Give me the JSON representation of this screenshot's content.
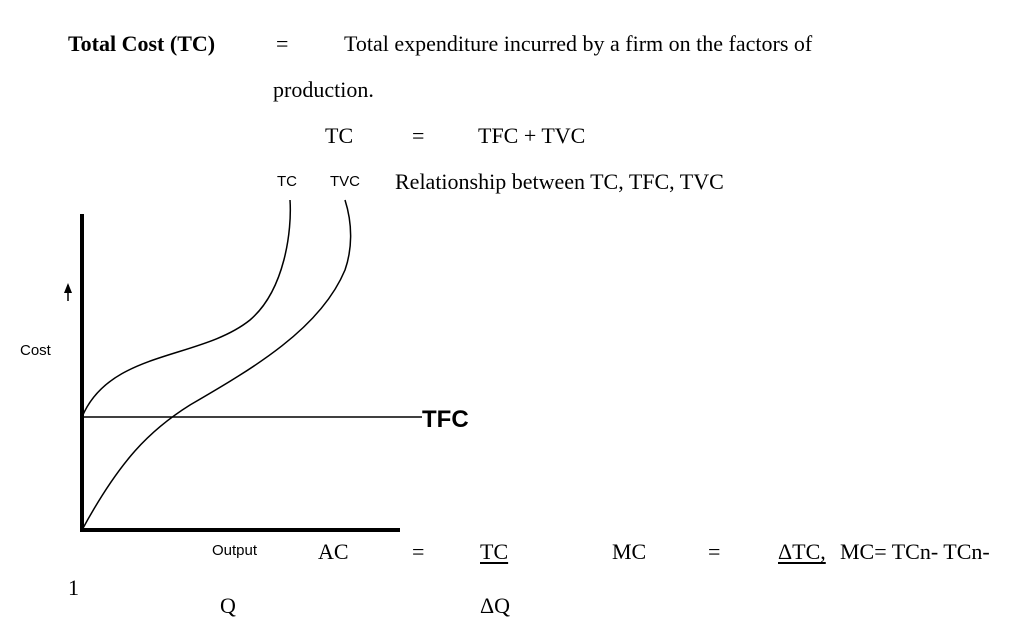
{
  "definition": {
    "term": "Total Cost (TC)",
    "equals": "=",
    "text_line1": "Total expenditure incurred by a firm on the factors of",
    "text_line2": "production."
  },
  "formula": {
    "lhs": "TC",
    "equals": "=",
    "rhs": "TFC + TVC"
  },
  "graph": {
    "curve_label_tc": "TC",
    "curve_label_tvc": "TVC",
    "caption": "Relationship between TC, TFC, TVC",
    "y_axis_label": "Cost",
    "x_axis_label": "Output",
    "tfc_label": "TFC"
  },
  "ac_formula": {
    "lhs": "AC",
    "equals": "=",
    "numerator": "TC",
    "denominator": "Q"
  },
  "mc_formula": {
    "lhs": "MC",
    "equals": "=",
    "numerator": "ΔTC,",
    "denominator": "ΔQ",
    "alt": "MC= TCn- TCn-",
    "wrap": "1"
  }
}
